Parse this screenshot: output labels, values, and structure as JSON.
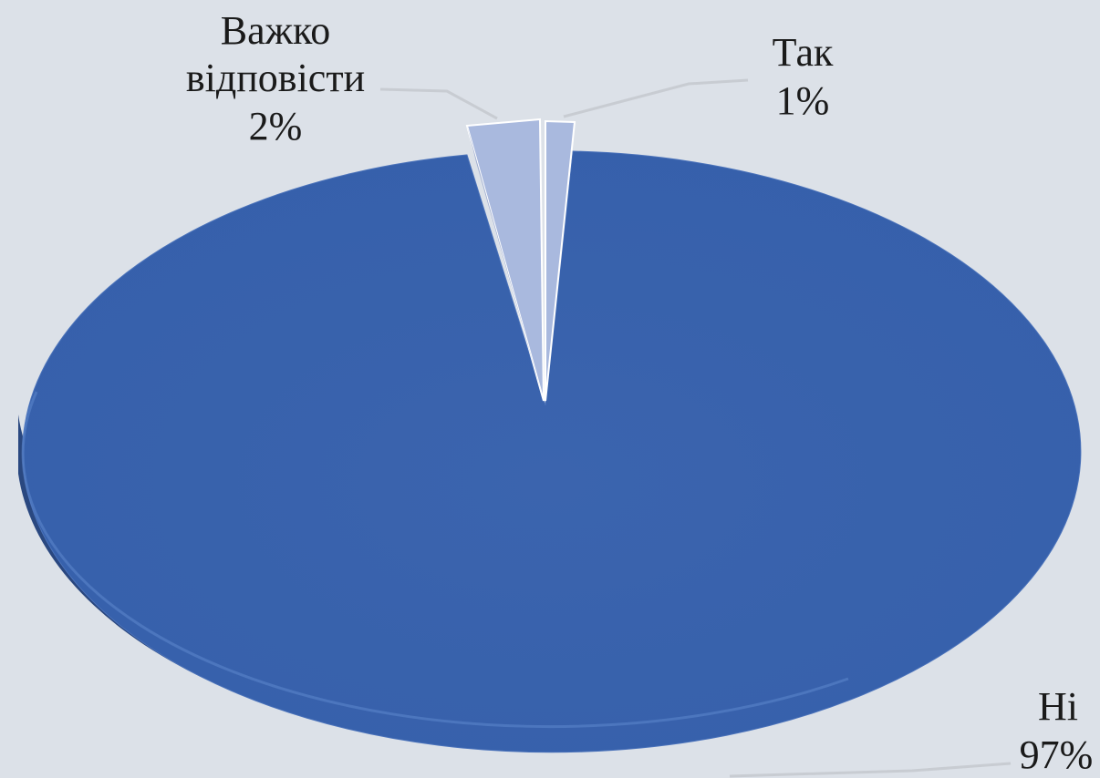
{
  "chart_data": {
    "type": "pie",
    "style": "3d",
    "title": "",
    "slices": [
      {
        "label": "Ні",
        "value": 97,
        "value_label": "97%",
        "color": "#3a62ab"
      },
      {
        "label": "Важко відповісти",
        "label_lines": [
          "Важко",
          "відповісти"
        ],
        "value": 2,
        "value_label": "2%",
        "color": "#a9b9de"
      },
      {
        "label": "Так",
        "value": 1,
        "value_label": "1%",
        "color": "#a9b9de"
      }
    ],
    "legend": "none",
    "label_style": "callout-lines"
  },
  "colors": {
    "background": "#dce1e8",
    "main_slice": "#3a62ab",
    "minor_slices": "#a9b9de",
    "leader_lines": "#c8ccd2"
  }
}
